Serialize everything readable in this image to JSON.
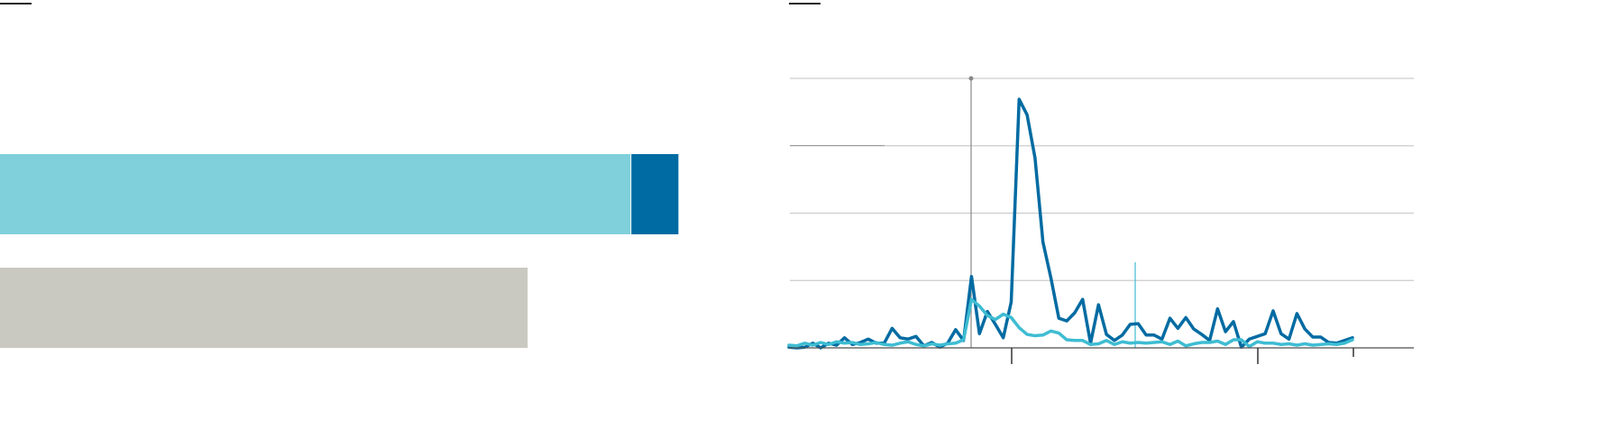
{
  "chart_data": [
    {
      "type": "hbar",
      "stacked": true,
      "categories": [
        null,
        null
      ],
      "xlim": [
        0,
        100
      ],
      "series": [
        {
          "color": "#7fd0db",
          "values": [
            92,
            null
          ]
        },
        {
          "color": "#006ba2",
          "values": [
            7,
            null
          ]
        },
        {
          "color": "#c9c9c1",
          "values": [
            null,
            77
          ]
        }
      ]
    },
    {
      "type": "line",
      "ylim": [
        0,
        4
      ],
      "yticks": [
        0,
        1,
        2,
        3,
        4
      ],
      "grid": true,
      "series": [
        {
          "color": "#006ba2",
          "values": [
            0.01,
            0,
            0.01,
            0.07,
            0,
            0.07,
            0.04,
            0.15,
            0.05,
            0.08,
            0.13,
            0.07,
            0.07,
            0.29,
            0.15,
            0.13,
            0.17,
            0.03,
            0.08,
            0.01,
            0.07,
            0.27,
            0.11,
            1.06,
            0.21,
            0.54,
            0.35,
            0.15,
            0.68,
            3.69,
            3.46,
            2.82,
            1.57,
            1.04,
            0.44,
            0.4,
            0.52,
            0.72,
            0.07,
            0.64,
            0.2,
            0.11,
            0.19,
            0.35,
            0.36,
            0.19,
            0.19,
            0.13,
            0.44,
            0.29,
            0.45,
            0.28,
            0.2,
            0.11,
            0.58,
            0.24,
            0.39,
            0.01,
            0.13,
            0.17,
            0.21,
            0.55,
            0.21,
            0.13,
            0.51,
            0.28,
            0.16,
            0.16,
            0.08,
            0.07,
            0.11,
            0.15
          ]
        },
        {
          "color": "#3ebcd2",
          "values": [
            0.04,
            0.03,
            0.07,
            0.04,
            0.08,
            0.05,
            0.09,
            0.07,
            0.08,
            0.05,
            0.06,
            0.08,
            0.05,
            0.04,
            0.07,
            0.09,
            0.05,
            0.03,
            0.06,
            0.04,
            0.06,
            0.07,
            0.12,
            0.72,
            0.62,
            0.48,
            0.42,
            0.5,
            0.45,
            0.3,
            0.2,
            0.18,
            0.19,
            0.25,
            0.22,
            0.12,
            0.11,
            0.11,
            0.05,
            0.06,
            0.11,
            0.05,
            0.09,
            0.07,
            0.08,
            0.07,
            0.08,
            0.09,
            0.05,
            0.1,
            0.03,
            0.06,
            0.08,
            0.08,
            0.1,
            0.05,
            0.12,
            0.12,
            0.02,
            0.09,
            0.07,
            0.07,
            0.05,
            0.06,
            0.04,
            0.06,
            0.04,
            0.05,
            0.06,
            0.05,
            0.07,
            0.12
          ]
        }
      ]
    }
  ]
}
